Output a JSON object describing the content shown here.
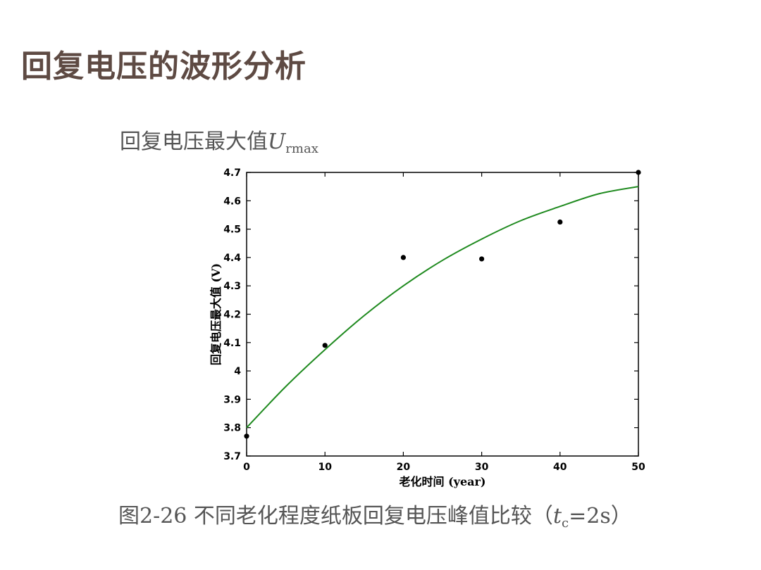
{
  "slide": {
    "title": "回复电压的波形分析"
  },
  "heading": {
    "prefix": "回复电压最大值",
    "symbol": "U",
    "subscript": "rmax"
  },
  "caption": {
    "prefix": "图2-26 不同老化程度纸板回复电压峰值比较（",
    "symbol": "t",
    "subscript": "c",
    "suffix": "=2s）"
  },
  "colors": {
    "title": "#5e4a43",
    "fit_line": "#1f8a1f",
    "points": "#000000",
    "axis": "#000000"
  },
  "chart_data": {
    "type": "scatter",
    "xlabel": "老化时间 (year)",
    "ylabel": "回复电压最大值 (V)",
    "xlim": [
      0,
      50
    ],
    "ylim": [
      3.7,
      4.7
    ],
    "x_ticks": [
      0,
      10,
      20,
      30,
      40,
      50
    ],
    "y_ticks": [
      3.7,
      3.8,
      3.9,
      4,
      4.1,
      4.2,
      4.3,
      4.4,
      4.5,
      4.6,
      4.7
    ],
    "x_tick_labels": [
      "0",
      "10",
      "20",
      "30",
      "40",
      "50"
    ],
    "y_tick_labels": [
      "3.7",
      "3.8",
      "3.9",
      "4",
      "4.1",
      "4.2",
      "4.3",
      "4.4",
      "4.5",
      "4.6",
      "4.7"
    ],
    "grid": false,
    "series": [
      {
        "kind": "scatter",
        "x": [
          0,
          10,
          20,
          30,
          40,
          50
        ],
        "y": [
          3.77,
          4.09,
          4.4,
          4.395,
          4.525,
          4.7
        ]
      },
      {
        "kind": "line",
        "x": [
          0,
          5,
          10,
          15,
          20,
          25,
          30,
          35,
          40,
          45,
          50
        ],
        "y": [
          3.8,
          3.945,
          4.075,
          4.195,
          4.3,
          4.39,
          4.465,
          4.53,
          4.58,
          4.625,
          4.65
        ]
      }
    ]
  }
}
